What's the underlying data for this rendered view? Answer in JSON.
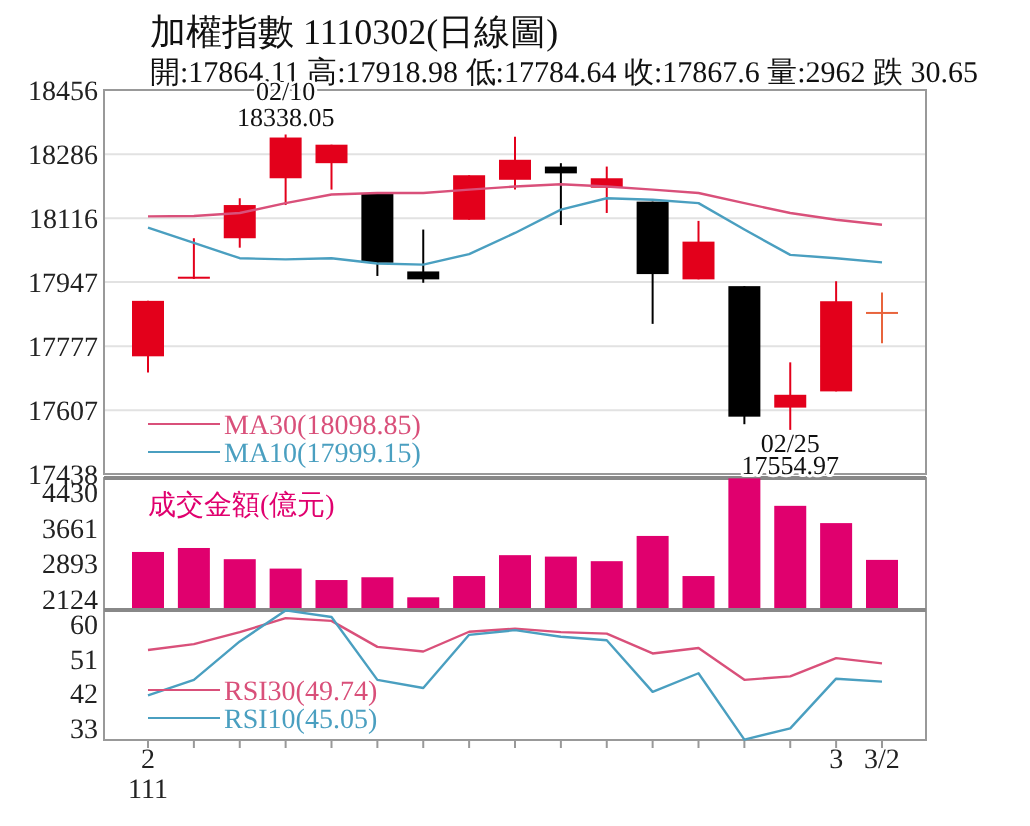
{
  "chart_data": [
    {
      "type": "candlestick",
      "title": "加權指數 1110302(日線圖)",
      "subtitle": "開:17864.11 高:17918.98 低:17784.64 收:17867.6 量:2962 跌 30.65",
      "ohlc": [
        [
          17750,
          17897,
          17707,
          17897
        ],
        [
          17958,
          18063,
          17955,
          17961
        ],
        [
          18063,
          18169,
          18038,
          18151
        ],
        [
          18222,
          18338.05,
          18151,
          18330
        ],
        [
          18262,
          18311,
          18192,
          18311
        ],
        [
          18183,
          18183,
          17963,
          17998
        ],
        [
          17975,
          18086,
          17945,
          17954
        ],
        [
          18112,
          18230,
          18112,
          18230
        ],
        [
          18218,
          18332,
          18192,
          18271
        ],
        [
          18253,
          18262,
          18098,
          18235
        ],
        [
          18197,
          18253,
          18130,
          18222
        ],
        [
          18160,
          18160,
          17836,
          17968
        ],
        [
          17954,
          18109,
          17954,
          18054
        ],
        [
          17936,
          17936,
          17570,
          17590
        ],
        [
          17614,
          17734,
          17554.97,
          17648
        ],
        [
          17657,
          17949,
          17657,
          17896
        ],
        [
          17864.11,
          17918.98,
          17784.64,
          17867.6
        ]
      ],
      "colors": [
        "#e3001b",
        "#e3001b",
        "#e3001b",
        "#e3001b",
        "#e3001b",
        "#000000",
        "#000000",
        "#e3001b",
        "#e3001b",
        "#000000",
        "#e3001b",
        "#000000",
        "#e3001b",
        "#000000",
        "#e3001b",
        "#e3001b",
        "#e8643c"
      ],
      "value_labels": [
        null,
        null,
        null,
        "02/10\n18338.05",
        null,
        null,
        null,
        null,
        null,
        null,
        null,
        null,
        null,
        null,
        "02/25\n17554.97",
        null,
        null
      ],
      "series": [
        {
          "name": "MA30(18098.85)",
          "type": "line",
          "color": "#d9507a",
          "values": [
            18121,
            18122,
            18130,
            18156,
            18179,
            18183,
            18183,
            18192,
            18200,
            18206,
            18200,
            18192,
            18183,
            18156,
            18130,
            18112,
            18098.85
          ]
        },
        {
          "name": "MA10(17999.15)",
          "type": "line",
          "color": "#4a9fc0",
          "values": [
            18091,
            18051,
            18010,
            18007,
            18010,
            17996,
            17993,
            18021,
            18077,
            18139,
            18169,
            18165,
            18156,
            18086,
            18019,
            18010,
            17999.15
          ]
        }
      ],
      "ylim": [
        17438,
        18456
      ],
      "yticks": [
        17438,
        17607,
        17777,
        17947,
        18116,
        18286,
        18456
      ],
      "grid": "y",
      "legend": "bottom left",
      "tick_labels": "y"
    },
    {
      "type": "bar",
      "series": [
        {
          "name": "成交金額(億元)",
          "color": "#e0006e",
          "values": [
            3133,
            3219,
            2977,
            2774,
            2527,
            2587,
            2154,
            2613,
            3064,
            3033,
            2934,
            3479,
            2613,
            4722,
            4129,
            3756,
            2962
          ]
        }
      ],
      "ylim": [
        1880,
        4730
      ],
      "yticks": [
        2124,
        2893,
        3661,
        4430
      ],
      "legend": "top left",
      "tick_labels": "y"
    },
    {
      "type": "line",
      "categories": [
        "2\n111",
        null,
        null,
        null,
        null,
        null,
        null,
        null,
        null,
        null,
        null,
        null,
        null,
        null,
        null,
        "3",
        "3/2"
      ],
      "series": [
        {
          "name": "RSI30(49.74)",
          "color": "#d9507a",
          "values": [
            53.2,
            54.7,
            57.8,
            61.4,
            60.7,
            54.0,
            52.8,
            57.9,
            58.7,
            57.8,
            57.4,
            52.3,
            53.7,
            45.5,
            46.4,
            51.1,
            49.74
          ]
        },
        {
          "name": "RSI10(45.05)",
          "color": "#4a9fc0",
          "values": [
            41.5,
            45.5,
            55.4,
            63.4,
            61.7,
            45.5,
            43.4,
            57.1,
            58.3,
            56.6,
            55.7,
            42.4,
            47.2,
            30.1,
            33.0,
            45.8,
            45.05
          ]
        }
      ],
      "ylim": [
        30,
        63.5
      ],
      "yticks": [
        33,
        42,
        51,
        60
      ],
      "legend": "bottom left"
    }
  ]
}
